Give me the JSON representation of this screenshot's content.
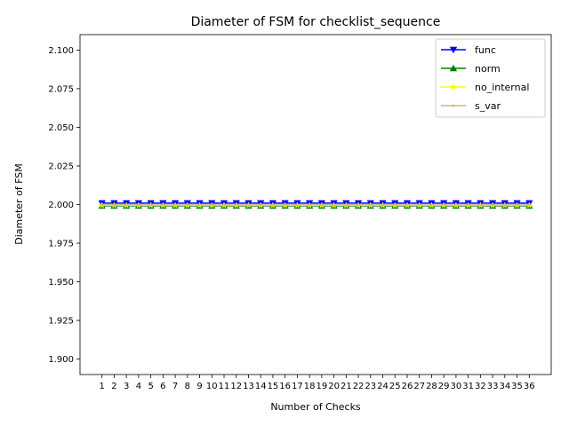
{
  "chart_data": {
    "type": "line",
    "title": "Diameter of FSM for checklist_sequence",
    "xlabel": "Number of Checks",
    "ylabel": "Diameter of FSM",
    "x": [
      1,
      2,
      3,
      4,
      5,
      6,
      7,
      8,
      9,
      10,
      11,
      12,
      13,
      14,
      15,
      16,
      17,
      18,
      19,
      20,
      21,
      22,
      23,
      24,
      25,
      26,
      27,
      28,
      29,
      30,
      31,
      32,
      33,
      34,
      35,
      36
    ],
    "ylim": [
      1.89,
      2.11
    ],
    "yticks": [
      1.9,
      1.925,
      1.95,
      1.975,
      2.0,
      2.025,
      2.05,
      2.075,
      2.1
    ],
    "ytick_labels": [
      "1.900",
      "1.925",
      "1.950",
      "1.975",
      "2.000",
      "2.025",
      "2.050",
      "2.075",
      "2.100"
    ],
    "grid": false,
    "legend_position": "top-right",
    "series": [
      {
        "name": "func",
        "color": "#0000ff",
        "marker": "triangle-down",
        "values": [
          2,
          2,
          2,
          2,
          2,
          2,
          2,
          2,
          2,
          2,
          2,
          2,
          2,
          2,
          2,
          2,
          2,
          2,
          2,
          2,
          2,
          2,
          2,
          2,
          2,
          2,
          2,
          2,
          2,
          2,
          2,
          2,
          2,
          2,
          2,
          2
        ]
      },
      {
        "name": "norm",
        "color": "#008000",
        "marker": "triangle-up",
        "values": [
          2,
          2,
          2,
          2,
          2,
          2,
          2,
          2,
          2,
          2,
          2,
          2,
          2,
          2,
          2,
          2,
          2,
          2,
          2,
          2,
          2,
          2,
          2,
          2,
          2,
          2,
          2,
          2,
          2,
          2,
          2,
          2,
          2,
          2,
          2,
          2
        ]
      },
      {
        "name": "no_internal",
        "color": "#ffff00",
        "marker": "star",
        "values": [
          2,
          2,
          2,
          2,
          2,
          2,
          2,
          2,
          2,
          2,
          2,
          2,
          2,
          2,
          2,
          2,
          2,
          2,
          2,
          2,
          2,
          2,
          2,
          2,
          2,
          2,
          2,
          2,
          2,
          2,
          2,
          2,
          2,
          2,
          2,
          2
        ]
      },
      {
        "name": "s_var",
        "color": "#d2b48c",
        "marker": "dot",
        "values": [
          2,
          2,
          2,
          2,
          2,
          2,
          2,
          2,
          2,
          2,
          2,
          2,
          2,
          2,
          2,
          2,
          2,
          2,
          2,
          2,
          2,
          2,
          2,
          2,
          2,
          2,
          2,
          2,
          2,
          2,
          2,
          2,
          2,
          2,
          2,
          2
        ]
      }
    ]
  }
}
